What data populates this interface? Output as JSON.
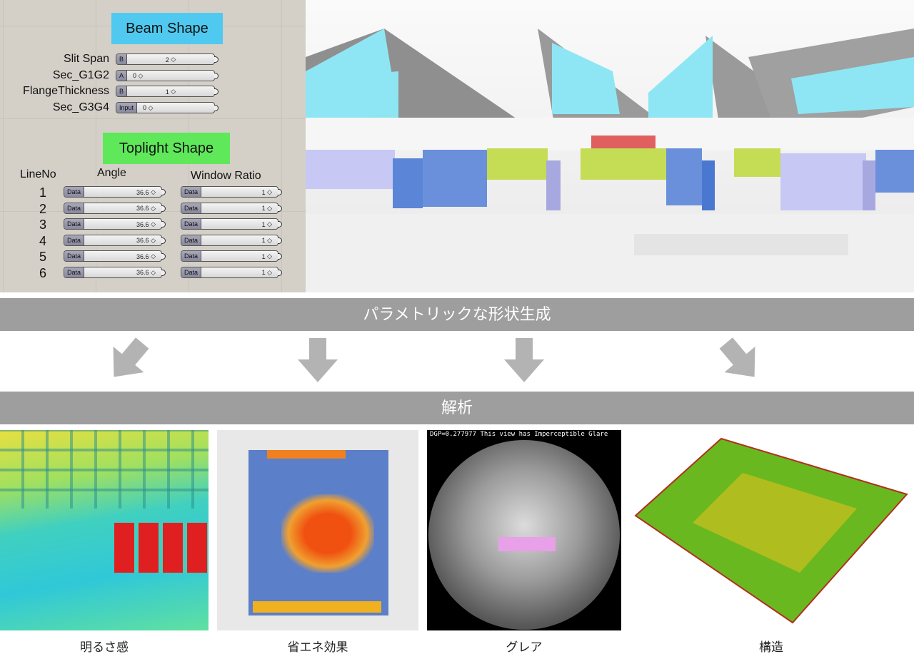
{
  "grasshopper": {
    "beam_title": "Beam Shape",
    "beam_color": "#4fc9ef",
    "beam_params": [
      {
        "label": "Slit Span",
        "tag": "B",
        "value": "2"
      },
      {
        "label": "Sec_G1G2",
        "tag": "A",
        "value": "0"
      },
      {
        "label": "FlangeThickness",
        "tag": "B",
        "value": "1"
      },
      {
        "label": "Sec_G3G4",
        "tag": "Input",
        "value": "0"
      }
    ],
    "toplight_title": "Toplight Shape",
    "toplight_color": "#5ee85a",
    "headers": {
      "line": "LineNo",
      "angle": "Angle",
      "ratio": "Window Ratio"
    },
    "rows": [
      {
        "no": "1",
        "tag": "Data",
        "angle": "36.6",
        "ratio": "1"
      },
      {
        "no": "2",
        "tag": "Data",
        "angle": "36.6",
        "ratio": "1"
      },
      {
        "no": "3",
        "tag": "Data",
        "angle": "36.6",
        "ratio": "1"
      },
      {
        "no": "4",
        "tag": "Data",
        "angle": "36.6",
        "ratio": "1"
      },
      {
        "no": "5",
        "tag": "Data",
        "angle": "36.6",
        "ratio": "1"
      },
      {
        "no": "6",
        "tag": "Data",
        "angle": "36.6",
        "ratio": "1"
      }
    ]
  },
  "banner1": "パラメトリックな形状生成",
  "banner2": "解析",
  "glare_text": "DGP=0.277977 This view has Imperceptible Glare",
  "captions": [
    "明るさ感",
    "省エネ効果",
    "グレア",
    "構造"
  ]
}
